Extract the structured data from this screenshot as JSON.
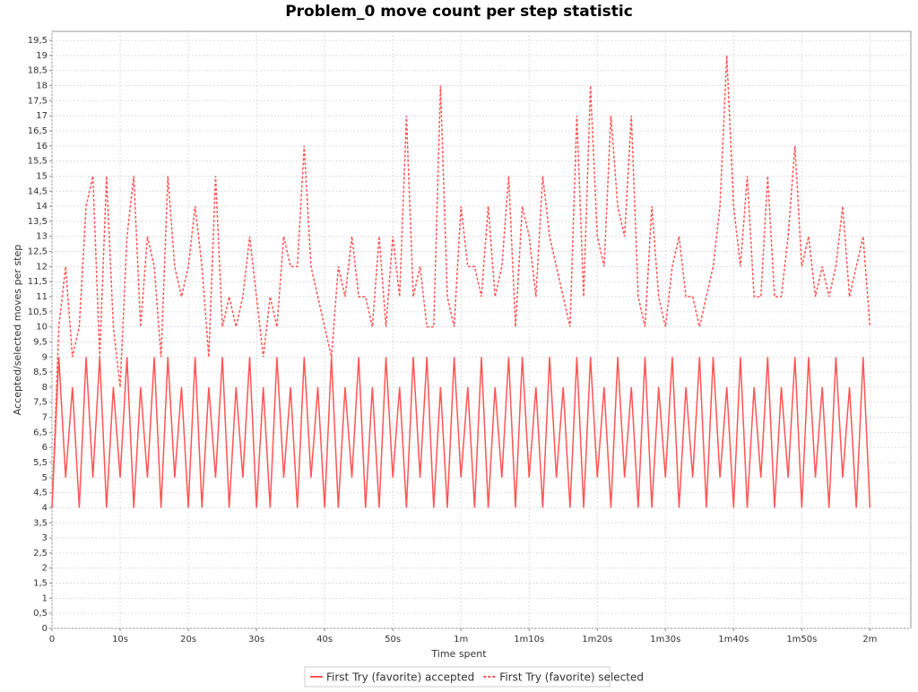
{
  "chart_data": {
    "type": "line",
    "title": "Problem_0 move count per step statistic",
    "x_label": "Time spent",
    "y_label": "Accepted/selected moves per step",
    "xlim": [
      0,
      126
    ],
    "ylim": [
      0,
      19.8
    ],
    "xticks": [
      0,
      {
        "value": 10,
        "label": "10s"
      },
      {
        "value": 20,
        "label": "20s"
      },
      {
        "value": 30,
        "label": "30s"
      },
      {
        "value": 40,
        "label": "40s"
      },
      {
        "value": 50,
        "label": "50s"
      },
      {
        "value": 60,
        "label": "1m"
      },
      {
        "value": 70,
        "label": "1m10s"
      },
      {
        "value": 80,
        "label": "1m20s"
      },
      {
        "value": 90,
        "label": "1m30s"
      },
      {
        "value": 100,
        "label": "1m40s"
      },
      {
        "value": 110,
        "label": "1m50s"
      },
      {
        "value": 120,
        "label": "2m"
      }
    ],
    "yticks": [
      0,
      {
        "value": 0.5,
        "label": "0,5"
      },
      1,
      {
        "value": 1.5,
        "label": "1,5"
      },
      2,
      {
        "value": 2.5,
        "label": "2,5"
      },
      3,
      {
        "value": 3.5,
        "label": "3,5"
      },
      4,
      {
        "value": 4.5,
        "label": "4,5"
      },
      5,
      {
        "value": 5.5,
        "label": "5,5"
      },
      6,
      {
        "value": 6.5,
        "label": "6,5"
      },
      7,
      {
        "value": 7.5,
        "label": "7,5"
      },
      8,
      {
        "value": 8.5,
        "label": "8,5"
      },
      9,
      {
        "value": 9.5,
        "label": "9,5"
      },
      10,
      {
        "value": 10.5,
        "label": "10,5"
      },
      11,
      {
        "value": 11.5,
        "label": "11,5"
      },
      12,
      {
        "value": 12.5,
        "label": "12,5"
      },
      13,
      {
        "value": 13.5,
        "label": "13,5"
      },
      14,
      {
        "value": 14.5,
        "label": "14,5"
      },
      15,
      {
        "value": 15.5,
        "label": "15,5"
      },
      16,
      {
        "value": 16.5,
        "label": "16,5"
      },
      17,
      {
        "value": 17.5,
        "label": "17,5"
      },
      18,
      {
        "value": 18.5,
        "label": "18,5"
      },
      19,
      {
        "value": 19.5,
        "label": "19,5"
      }
    ],
    "grid": true,
    "legend": "bottom",
    "x": [
      0,
      1,
      2,
      3,
      4,
      5,
      6,
      7,
      8,
      9,
      10,
      11,
      12,
      13,
      14,
      15,
      16,
      17,
      18,
      19,
      20,
      21,
      22,
      23,
      24,
      25,
      26,
      27,
      28,
      29,
      30,
      31,
      32,
      33,
      34,
      35,
      36,
      37,
      38,
      39,
      40,
      41,
      42,
      43,
      44,
      45,
      46,
      47,
      48,
      49,
      50,
      51,
      52,
      53,
      54,
      55,
      56,
      57,
      58,
      59,
      60,
      61,
      62,
      63,
      64,
      65,
      66,
      67,
      68,
      69,
      70,
      71,
      72,
      73,
      74,
      75,
      76,
      77,
      78,
      79,
      80,
      81,
      82,
      83,
      84,
      85,
      86,
      87,
      88,
      89,
      90,
      91,
      92,
      93,
      94,
      95,
      96,
      97,
      98,
      99,
      100,
      101,
      102,
      103,
      104,
      105,
      106,
      107,
      108,
      109,
      110,
      111,
      112,
      113,
      114,
      115,
      116,
      117,
      118,
      119,
      120
    ],
    "series": [
      {
        "name": "First Try (favorite) accepted",
        "color": "#ff5555",
        "dashed": false,
        "values": [
          4,
          9,
          5,
          8,
          4,
          9,
          5,
          9,
          4,
          8,
          5,
          9,
          4,
          8,
          5,
          9,
          4,
          9,
          5,
          8,
          4,
          9,
          4,
          8,
          5,
          9,
          4,
          8,
          5,
          9,
          4,
          8,
          4,
          9,
          5,
          8,
          4,
          9,
          5,
          8,
          4,
          9,
          4,
          8,
          5,
          9,
          4,
          8,
          4,
          9,
          5,
          8,
          4,
          9,
          5,
          9,
          4,
          8,
          4,
          9,
          5,
          8,
          4,
          9,
          4,
          8,
          5,
          9,
          4,
          9,
          5,
          8,
          4,
          9,
          5,
          8,
          4,
          9,
          4,
          9,
          5,
          8,
          4,
          9,
          5,
          8,
          4,
          9,
          4,
          8,
          5,
          9,
          4,
          8,
          5,
          9,
          4,
          9,
          5,
          8,
          4,
          9,
          4,
          8,
          5,
          9,
          4,
          8,
          5,
          9,
          4,
          9,
          5,
          8,
          4,
          9,
          5,
          8,
          4,
          9,
          4
        ]
      },
      {
        "name": "First Try (favorite) selected",
        "color": "#ff5555",
        "dashed": true,
        "values": [
          4,
          10,
          12,
          9,
          10,
          14,
          15,
          9,
          15,
          10,
          8,
          13,
          15,
          10,
          13,
          12,
          9,
          15,
          12,
          11,
          12,
          14,
          12,
          9,
          15,
          10,
          11,
          10,
          11,
          13,
          11,
          9,
          11,
          10,
          13,
          12,
          12,
          16,
          12,
          11,
          10,
          9,
          12,
          11,
          13,
          11,
          11,
          10,
          13,
          10,
          13,
          11,
          17,
          11,
          12,
          10,
          10,
          18,
          11,
          10,
          14,
          12,
          12,
          11,
          14,
          11,
          12,
          15,
          10,
          14,
          13,
          11,
          15,
          13,
          12,
          11,
          10,
          17,
          11,
          18,
          13,
          12,
          17,
          14,
          13,
          17,
          11,
          10,
          14,
          11,
          10,
          12,
          13,
          11,
          11,
          10,
          11,
          12,
          14,
          19,
          14,
          12,
          15,
          11,
          11,
          15,
          11,
          11,
          13,
          16,
          12,
          13,
          11,
          12,
          11,
          12,
          14,
          11,
          12,
          13,
          10
        ]
      }
    ]
  }
}
